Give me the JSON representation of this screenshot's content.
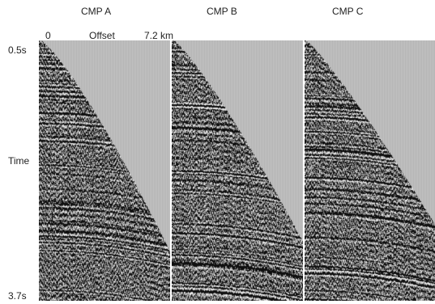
{
  "panels": [
    {
      "title": "CMP  A"
    },
    {
      "title": "CMP  B"
    },
    {
      "title": "CMP C"
    }
  ],
  "offset": {
    "start": "0",
    "label": "Offset",
    "end": "7.2 km"
  },
  "time": {
    "top": "0.5s",
    "middle": "Time",
    "bottom": "3.7s"
  }
}
